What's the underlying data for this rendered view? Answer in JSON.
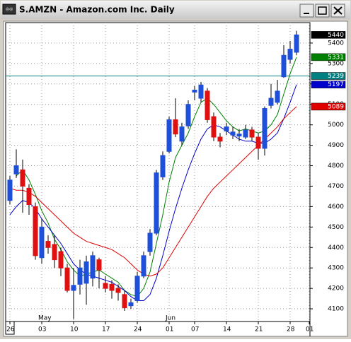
{
  "chart_data": {
    "type": "candlestick",
    "title": "S.AMZN - Amazon.com Inc. Daily",
    "categories": [
      "26",
      null,
      null,
      null,
      null,
      "03",
      null,
      null,
      null,
      null,
      "10",
      null,
      null,
      null,
      null,
      "17",
      null,
      null,
      null,
      null,
      "24",
      null,
      null,
      null,
      null,
      "01",
      null,
      null,
      null,
      "07",
      null,
      null,
      null,
      null,
      "14",
      null,
      null,
      null,
      null,
      "21",
      null,
      null,
      null,
      null,
      "28",
      null,
      null,
      "01"
    ],
    "month_categories": [
      null,
      null,
      null,
      null,
      null,
      "May",
      null,
      null,
      null,
      null,
      null,
      null,
      null,
      null,
      null,
      null,
      null,
      null,
      null,
      null,
      null,
      null,
      null,
      null,
      null,
      "Jun",
      null,
      null,
      null,
      null,
      null,
      null,
      null,
      null,
      null,
      null,
      null,
      null,
      null,
      null,
      null,
      null,
      null,
      null,
      null,
      null,
      null,
      null
    ],
    "open": [
      4630,
      4760,
      4780,
      4690,
      4600,
      4350,
      4430,
      4415,
      4380,
      4300,
      4190,
      4220,
      4225,
      4250,
      4340,
      4225,
      4220,
      4200,
      4170,
      4115,
      4140,
      4260,
      4380,
      4470,
      4745,
      4870,
      5025,
      4920,
      4995,
      5160,
      5130,
      5165,
      5040,
      4940,
      4970,
      4950,
      4945,
      4940,
      4975,
      4940,
      4885,
      5095,
      5110,
      5235,
      5320,
      5355,
      null,
      null
    ],
    "high": [
      4750,
      4880,
      4830,
      4710,
      4620,
      4540,
      4460,
      4460,
      4400,
      4320,
      4300,
      4340,
      4360,
      4380,
      4350,
      4260,
      4240,
      4220,
      4190,
      4150,
      4280,
      4380,
      4490,
      4780,
      4870,
      5040,
      5130,
      5010,
      5120,
      5190,
      5210,
      5180,
      5060,
      4960,
      5010,
      4990,
      4980,
      5000,
      4990,
      4960,
      5090,
      5200,
      5220,
      5390,
      5410,
      5460,
      null,
      null
    ],
    "low": [
      4610,
      4740,
      4570,
      4560,
      4340,
      4320,
      4370,
      4300,
      4260,
      4180,
      4050,
      4170,
      4120,
      4210,
      4200,
      4180,
      4150,
      4140,
      4090,
      4100,
      4130,
      4250,
      4360,
      4460,
      4730,
      4860,
      4940,
      4900,
      4980,
      5120,
      5110,
      5010,
      4920,
      4890,
      4950,
      4930,
      4920,
      4930,
      4920,
      4830,
      4850,
      5080,
      5100,
      5230,
      5300,
      5340,
      null,
      null
    ],
    "close": [
      4730,
      4800,
      4700,
      4610,
      4360,
      4500,
      4400,
      4340,
      4300,
      4190,
      4215,
      4300,
      4330,
      4360,
      4290,
      4200,
      4190,
      4180,
      4105,
      4130,
      4260,
      4360,
      4470,
      4765,
      4850,
      5025,
      4955,
      4990,
      5100,
      5170,
      5195,
      5025,
      4940,
      4920,
      4990,
      4965,
      4955,
      4975,
      4940,
      4885,
      5080,
      5130,
      5165,
      5340,
      5370,
      5440,
      null,
      null
    ],
    "up_color": "#1e4fd8",
    "down_color": "#e01010",
    "ma": [
      {
        "color": "#008000",
        "values": [
          null,
          4750,
          4780,
          4730,
          4660,
          4580,
          4520,
          4440,
          4390,
          4330,
          4290,
          4260,
          4270,
          4280,
          4290,
          4270,
          4250,
          4230,
          4190,
          4170,
          4160,
          4200,
          4280,
          4420,
          4560,
          4720,
          4840,
          4900,
          4960,
          5040,
          5110,
          5130,
          5100,
          5060,
          5020,
          4990,
          4970,
          4980,
          4970,
          4960,
          4970,
          5000,
          5050,
          5150,
          5250,
          5331,
          null,
          null
        ]
      },
      {
        "color": "#0000cc",
        "values": [
          4560,
          4600,
          4630,
          4620,
          4590,
          4540,
          4500,
          4460,
          4420,
          4370,
          4320,
          4290,
          4270,
          4260,
          4250,
          4240,
          4230,
          4210,
          4190,
          4160,
          4140,
          4140,
          4170,
          4250,
          4360,
          4480,
          4590,
          4690,
          4780,
          4860,
          4930,
          4980,
          5000,
          4990,
          4970,
          4950,
          4930,
          4920,
          4920,
          4910,
          4910,
          4930,
          4960,
          5030,
          5110,
          5197,
          null,
          null
        ]
      },
      {
        "color": "#e00000",
        "values": [
          4690,
          4680,
          4680,
          4670,
          4650,
          4620,
          4590,
          4560,
          4530,
          4500,
          4470,
          4450,
          4430,
          4420,
          4410,
          4400,
          4390,
          4370,
          4350,
          4320,
          4290,
          4270,
          4260,
          4270,
          4300,
          4350,
          4400,
          4450,
          4500,
          4550,
          4600,
          4650,
          4690,
          4720,
          4750,
          4780,
          4810,
          4840,
          4870,
          4900,
          4930,
          4960,
          4990,
          5030,
          5060,
          5089,
          null,
          null
        ]
      }
    ],
    "hline": {
      "value": 5239,
      "color": "#008080"
    },
    "ylim": [
      4038,
      5500
    ],
    "yticks": [
      4100,
      4200,
      4300,
      4400,
      4500,
      4600,
      4700,
      4800,
      4900,
      5000,
      5100,
      5200,
      5300,
      5400
    ],
    "grid": true
  }
}
